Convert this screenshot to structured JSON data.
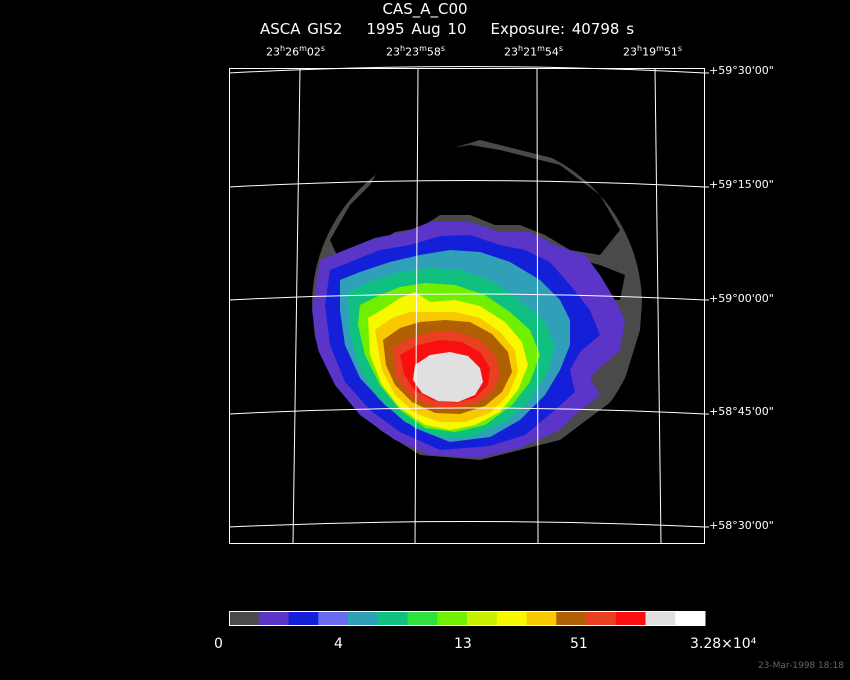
{
  "header": {
    "title": "CAS_A_C00",
    "instrument": "ASCA GIS2",
    "date": "1995 Aug 10",
    "exposure": "Exposure: 40798 s"
  },
  "ra_labels": [
    {
      "h": "23",
      "m": "26",
      "s": "02"
    },
    {
      "h": "23",
      "m": "23",
      "s": "58"
    },
    {
      "h": "23",
      "m": "21",
      "s": "54"
    },
    {
      "h": "23",
      "m": "19",
      "s": "51"
    }
  ],
  "dec_labels": [
    "+59°30'00\"",
    "+59°15'00\"",
    "+59°00'00\"",
    "+58°45'00\"",
    "+58°30'00\""
  ],
  "colorbar": {
    "labels": [
      "0",
      "4",
      "13",
      "51",
      "3.28×10⁴"
    ],
    "colors": [
      "#4a4a4a",
      "#5a35c8",
      "#1420d8",
      "#6a6af0",
      "#30a0b8",
      "#10c080",
      "#30e040",
      "#70f000",
      "#c8f000",
      "#f8f800",
      "#f8c800",
      "#b06000",
      "#e84020",
      "#f81010",
      "#e0e0e0",
      "#ffffff"
    ]
  },
  "timestamp": "23-Mar-1998 18:18"
}
